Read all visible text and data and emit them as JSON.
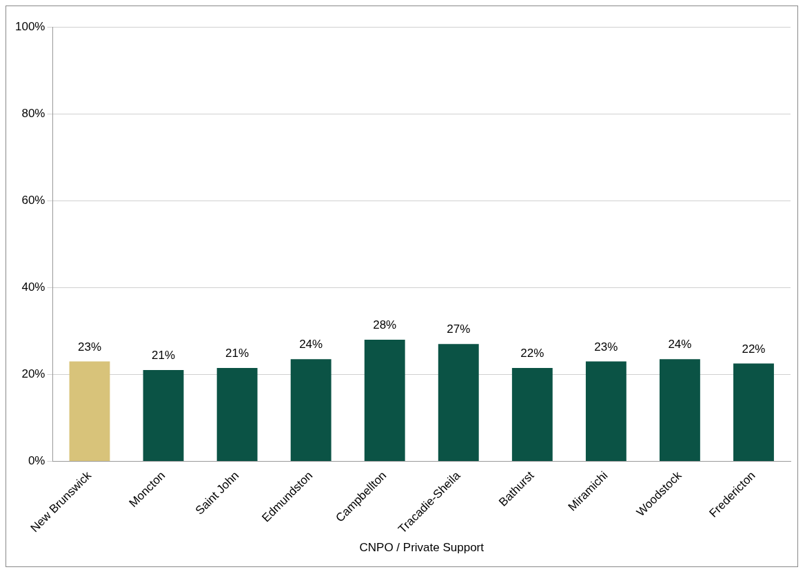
{
  "chart_data": {
    "type": "bar",
    "xlabel": "CNPO / Private Support",
    "categories": [
      "New Brunswick",
      "Moncton",
      "Saint John",
      "Edmundston",
      "Campbellton",
      "Tracadie-Sheila",
      "Bathurst",
      "Miramichi",
      "Woodstock",
      "Fredericton"
    ],
    "values": [
      23,
      21,
      21.5,
      23.5,
      28,
      27,
      21.5,
      23,
      23.5,
      22.5
    ],
    "value_labels": [
      "23%",
      "21%",
      "21%",
      "24%",
      "28%",
      "27%",
      "22%",
      "23%",
      "24%",
      "22%"
    ],
    "colors": [
      "#d8c37a",
      "#0b5345",
      "#0b5345",
      "#0b5345",
      "#0b5345",
      "#0b5345",
      "#0b5345",
      "#0b5345",
      "#0b5345",
      "#0b5345"
    ],
    "ylim": [
      0,
      100
    ],
    "yticks": [
      {
        "value": 0,
        "label": "0%"
      },
      {
        "value": 20,
        "label": "20%"
      },
      {
        "value": 40,
        "label": "40%"
      },
      {
        "value": 60,
        "label": "60%"
      },
      {
        "value": 80,
        "label": "80%"
      },
      {
        "value": 100,
        "label": "100%"
      }
    ],
    "grid": "y",
    "legend": false
  }
}
